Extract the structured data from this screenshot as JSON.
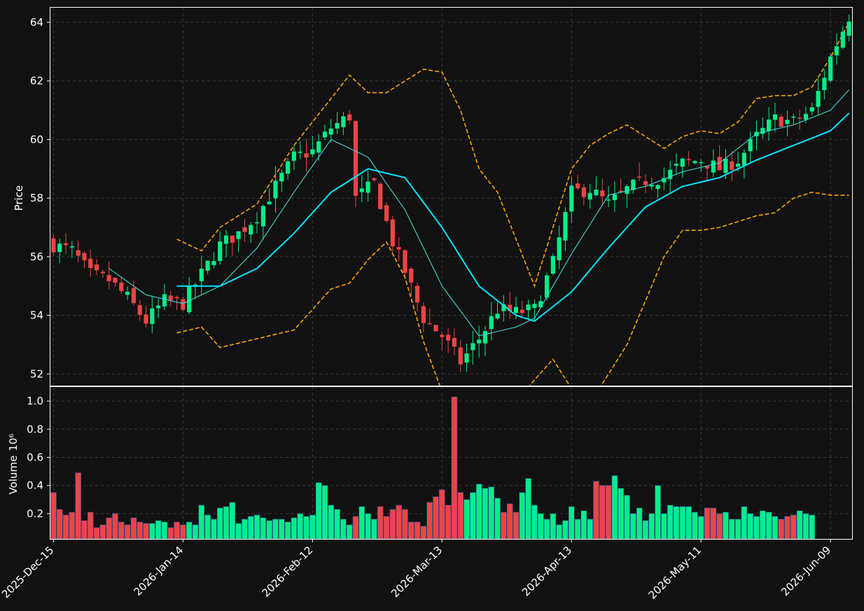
{
  "chart_data": {
    "type": "candlestick",
    "price_panel": {
      "ylabel": "Price",
      "ylim": [
        51.6,
        64.5
      ],
      "yticks": [
        "52",
        "54",
        "56",
        "58",
        "60",
        "62",
        "64"
      ],
      "grid": true,
      "series": [
        {
          "role": "candles",
          "colors": {
            "up": "#00ee88",
            "down": "#ee4444"
          }
        },
        {
          "role": "moving-average-fast",
          "color": "#40d8d8"
        },
        {
          "role": "moving-average-slow",
          "color": "#00e5ff"
        },
        {
          "role": "bollinger-bands",
          "color": "#ffa500",
          "style": "dashed"
        }
      ]
    },
    "volume_panel": {
      "ylabel": "Volume",
      "ylabel_exponent": "10⁶",
      "ylim": [
        0.02,
        1.1
      ],
      "yticks": [
        "0.2",
        "0.4",
        "0.6",
        "0.8",
        "1.0"
      ],
      "grid": true
    },
    "x_axis": {
      "tick_labels": [
        "2025-Dec-15",
        "2026-Jan-14",
        "2026-Feb-12",
        "2026-Mar-13",
        "2026-Apr-13",
        "2026-May-11",
        "2026-Jun-09"
      ],
      "tick_indices": [
        0,
        21,
        42,
        63,
        84,
        105,
        126
      ],
      "n_bars": 130
    },
    "anchors": {
      "close": [
        [
          0,
          56.4
        ],
        [
          3,
          56.2
        ],
        [
          6,
          55.4
        ],
        [
          9,
          55.2
        ],
        [
          12,
          54.6
        ],
        [
          15,
          53.8
        ],
        [
          18,
          54.5
        ],
        [
          21,
          54.4
        ],
        [
          24,
          55.4
        ],
        [
          27,
          56.4
        ],
        [
          30,
          56.8
        ],
        [
          33,
          57.4
        ],
        [
          36,
          58.4
        ],
        [
          39,
          59.4
        ],
        [
          42,
          59.6
        ],
        [
          45,
          60.4
        ],
        [
          48,
          60.8
        ],
        [
          49,
          58.0
        ],
        [
          52,
          58.5
        ],
        [
          55,
          56.5
        ],
        [
          57,
          55.5
        ],
        [
          60,
          53.9
        ],
        [
          63,
          53.3
        ],
        [
          66,
          52.4
        ],
        [
          69,
          53.2
        ],
        [
          72,
          54.2
        ],
        [
          75,
          54.1
        ],
        [
          78,
          54.2
        ],
        [
          81,
          55.8
        ],
        [
          84,
          58.2
        ],
        [
          87,
          58.3
        ],
        [
          90,
          57.8
        ],
        [
          93,
          58.3
        ],
        [
          96,
          58.6
        ],
        [
          99,
          58.7
        ],
        [
          102,
          59.2
        ],
        [
          105,
          59.3
        ],
        [
          108,
          59.0
        ],
        [
          111,
          59.3
        ],
        [
          114,
          60.1
        ],
        [
          117,
          60.7
        ],
        [
          120,
          60.6
        ],
        [
          123,
          61.0
        ],
        [
          126,
          62.8
        ],
        [
          129,
          64.2
        ]
      ],
      "ma_fast": [
        [
          9,
          55.6
        ],
        [
          15,
          54.7
        ],
        [
          21,
          54.4
        ],
        [
          27,
          55.0
        ],
        [
          33,
          56.3
        ],
        [
          39,
          58.2
        ],
        [
          45,
          60.0
        ],
        [
          51,
          59.4
        ],
        [
          57,
          57.6
        ],
        [
          63,
          55.0
        ],
        [
          69,
          53.3
        ],
        [
          75,
          53.6
        ],
        [
          78,
          53.9
        ],
        [
          84,
          56.1
        ],
        [
          90,
          58.1
        ],
        [
          96,
          58.4
        ],
        [
          102,
          58.9
        ],
        [
          108,
          59.2
        ],
        [
          114,
          60.2
        ],
        [
          120,
          60.5
        ],
        [
          126,
          61.0
        ],
        [
          129,
          61.7
        ]
      ],
      "ma_slow": [
        [
          20,
          55.0
        ],
        [
          27,
          55.0
        ],
        [
          33,
          55.6
        ],
        [
          39,
          56.8
        ],
        [
          45,
          58.2
        ],
        [
          51,
          59.0
        ],
        [
          57,
          58.7
        ],
        [
          63,
          57.0
        ],
        [
          69,
          55.0
        ],
        [
          75,
          54.0
        ],
        [
          78,
          53.8
        ],
        [
          84,
          54.8
        ],
        [
          90,
          56.3
        ],
        [
          96,
          57.7
        ],
        [
          102,
          58.4
        ],
        [
          108,
          58.7
        ],
        [
          114,
          59.3
        ],
        [
          120,
          59.8
        ],
        [
          126,
          60.3
        ],
        [
          129,
          60.9
        ]
      ],
      "bb_upper": [
        [
          20,
          56.6
        ],
        [
          24,
          56.2
        ],
        [
          27,
          57.0
        ],
        [
          33,
          57.8
        ],
        [
          39,
          59.8
        ],
        [
          45,
          61.4
        ],
        [
          48,
          62.2
        ],
        [
          51,
          61.6
        ],
        [
          54,
          61.6
        ],
        [
          57,
          62.0
        ],
        [
          60,
          62.4
        ],
        [
          63,
          62.3
        ],
        [
          66,
          61.0
        ],
        [
          69,
          59.0
        ],
        [
          72,
          58.2
        ],
        [
          75,
          56.6
        ],
        [
          78,
          55.0
        ],
        [
          81,
          57.0
        ],
        [
          84,
          59.0
        ],
        [
          87,
          59.8
        ],
        [
          90,
          60.2
        ],
        [
          93,
          60.5
        ],
        [
          96,
          60.1
        ],
        [
          99,
          59.7
        ],
        [
          102,
          60.1
        ],
        [
          105,
          60.3
        ],
        [
          108,
          60.2
        ],
        [
          111,
          60.6
        ],
        [
          114,
          61.4
        ],
        [
          117,
          61.5
        ],
        [
          120,
          61.5
        ],
        [
          123,
          61.8
        ],
        [
          126,
          62.8
        ],
        [
          129,
          64.0
        ]
      ],
      "bb_lower": [
        [
          20,
          53.4
        ],
        [
          24,
          53.6
        ],
        [
          27,
          52.9
        ],
        [
          33,
          53.2
        ],
        [
          39,
          53.5
        ],
        [
          45,
          54.9
        ],
        [
          48,
          55.1
        ],
        [
          51,
          55.9
        ],
        [
          54,
          56.5
        ],
        [
          57,
          55.3
        ],
        [
          60,
          53.1
        ],
        [
          63,
          51.4
        ],
        [
          69,
          50.8
        ],
        [
          75,
          51.0
        ],
        [
          78,
          51.8
        ],
        [
          81,
          52.5
        ],
        [
          84,
          51.5
        ],
        [
          87,
          51.0
        ],
        [
          90,
          52.0
        ],
        [
          93,
          53.0
        ],
        [
          96,
          54.5
        ],
        [
          99,
          56.0
        ],
        [
          102,
          56.9
        ],
        [
          105,
          56.9
        ],
        [
          108,
          57.0
        ],
        [
          111,
          57.2
        ],
        [
          114,
          57.4
        ],
        [
          117,
          57.5
        ],
        [
          120,
          58.0
        ],
        [
          123,
          58.2
        ],
        [
          126,
          58.1
        ],
        [
          129,
          58.1
        ]
      ],
      "volume": [
        [
          0,
          0.35
        ],
        [
          1,
          0.23
        ],
        [
          2,
          0.19
        ],
        [
          3,
          0.21
        ],
        [
          4,
          0.49
        ],
        [
          5,
          0.15
        ],
        [
          6,
          0.21
        ],
        [
          7,
          0.1
        ],
        [
          8,
          0.12
        ],
        [
          9,
          0.17
        ],
        [
          10,
          0.2
        ],
        [
          11,
          0.14
        ],
        [
          12,
          0.12
        ],
        [
          13,
          0.17
        ],
        [
          14,
          0.14
        ],
        [
          15,
          0.13
        ],
        [
          16,
          0.13
        ],
        [
          17,
          0.15
        ],
        [
          18,
          0.14
        ],
        [
          19,
          0.1
        ],
        [
          20,
          0.14
        ],
        [
          21,
          0.12
        ],
        [
          22,
          0.14
        ],
        [
          23,
          0.12
        ],
        [
          24,
          0.26
        ],
        [
          25,
          0.19
        ],
        [
          26,
          0.16
        ],
        [
          27,
          0.24
        ],
        [
          28,
          0.25
        ],
        [
          29,
          0.28
        ],
        [
          30,
          0.13
        ],
        [
          31,
          0.16
        ],
        [
          32,
          0.18
        ],
        [
          33,
          0.19
        ],
        [
          34,
          0.17
        ],
        [
          35,
          0.15
        ],
        [
          36,
          0.16
        ],
        [
          37,
          0.16
        ],
        [
          38,
          0.14
        ],
        [
          39,
          0.17
        ],
        [
          40,
          0.2
        ],
        [
          41,
          0.18
        ],
        [
          42,
          0.19
        ],
        [
          43,
          0.42
        ],
        [
          44,
          0.4
        ],
        [
          45,
          0.26
        ],
        [
          46,
          0.23
        ],
        [
          47,
          0.16
        ],
        [
          48,
          0.12
        ],
        [
          49,
          0.18
        ],
        [
          50,
          0.25
        ],
        [
          51,
          0.2
        ],
        [
          52,
          0.16
        ],
        [
          53,
          0.25
        ],
        [
          54,
          0.18
        ],
        [
          55,
          0.23
        ],
        [
          56,
          0.26
        ],
        [
          57,
          0.23
        ],
        [
          58,
          0.14
        ],
        [
          59,
          0.14
        ],
        [
          60,
          0.11
        ],
        [
          61,
          0.28
        ],
        [
          62,
          0.32
        ],
        [
          63,
          0.37
        ],
        [
          64,
          0.26
        ],
        [
          65,
          1.03
        ],
        [
          66,
          0.35
        ],
        [
          67,
          0.3
        ],
        [
          68,
          0.35
        ],
        [
          69,
          0.41
        ],
        [
          70,
          0.38
        ],
        [
          71,
          0.39
        ],
        [
          72,
          0.31
        ],
        [
          73,
          0.21
        ],
        [
          74,
          0.27
        ],
        [
          75,
          0.21
        ],
        [
          76,
          0.35
        ],
        [
          77,
          0.45
        ],
        [
          78,
          0.26
        ],
        [
          79,
          0.2
        ],
        [
          80,
          0.16
        ],
        [
          81,
          0.2
        ],
        [
          82,
          0.12
        ],
        [
          83,
          0.15
        ],
        [
          84,
          0.25
        ],
        [
          85,
          0.16
        ],
        [
          86,
          0.22
        ],
        [
          87,
          0.16
        ],
        [
          88,
          0.43
        ],
        [
          89,
          0.4
        ],
        [
          90,
          0.4
        ],
        [
          91,
          0.47
        ],
        [
          92,
          0.38
        ],
        [
          93,
          0.33
        ],
        [
          94,
          0.2
        ],
        [
          95,
          0.24
        ],
        [
          96,
          0.15
        ],
        [
          97,
          0.2
        ],
        [
          98,
          0.4
        ],
        [
          99,
          0.2
        ],
        [
          100,
          0.26
        ],
        [
          101,
          0.25
        ],
        [
          102,
          0.25
        ],
        [
          103,
          0.25
        ],
        [
          104,
          0.21
        ],
        [
          105,
          0.18
        ],
        [
          106,
          0.24
        ],
        [
          107,
          0.24
        ],
        [
          108,
          0.2
        ],
        [
          109,
          0.21
        ],
        [
          110,
          0.16
        ],
        [
          111,
          0.16
        ],
        [
          112,
          0.25
        ],
        [
          113,
          0.2
        ],
        [
          114,
          0.18
        ],
        [
          115,
          0.22
        ],
        [
          116,
          0.21
        ],
        [
          117,
          0.18
        ],
        [
          118,
          0.16
        ],
        [
          119,
          0.18
        ],
        [
          120,
          0.19
        ],
        [
          121,
          0.22
        ],
        [
          122,
          0.2
        ],
        [
          123,
          0.19
        ]
      ]
    }
  }
}
